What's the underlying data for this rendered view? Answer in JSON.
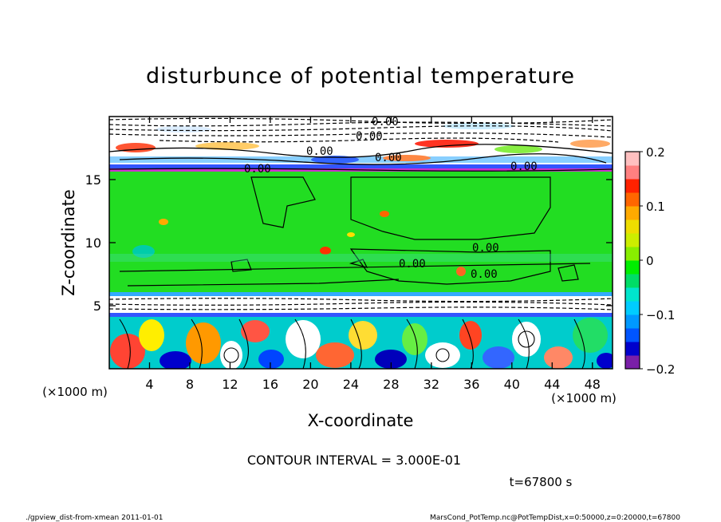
{
  "chart_data": {
    "type": "heatmap",
    "title": "disturbunce of potential temperature",
    "xlabel": "X-coordinate",
    "ylabel": "Z-coordinate",
    "x_unit": "(×1000 m)",
    "y_unit": "(×1000 m)",
    "xlim": [
      0,
      50
    ],
    "ylim": [
      0,
      20
    ],
    "x_ticks": [
      4,
      8,
      12,
      16,
      20,
      24,
      28,
      32,
      36,
      40,
      44,
      48
    ],
    "y_ticks": [
      5,
      10,
      15
    ],
    "colorbar": {
      "range": [
        -0.2,
        0.2
      ],
      "tick_values": [
        0.2,
        0.1,
        0,
        -0.1,
        -0.2
      ],
      "tick_labels": [
        "0.2",
        "0.1",
        "0",
        "−0.1",
        "−0.2"
      ],
      "colors": [
        "#7a1fa8",
        "#0000cc",
        "#0055ff",
        "#0099ff",
        "#00ccff",
        "#00e5cc",
        "#00dd66",
        "#00ee00",
        "#88ee00",
        "#ccee00",
        "#eedd00",
        "#ffaa00",
        "#ff6600",
        "#ff2200",
        "#ff8080",
        "#ffc0c0"
      ]
    },
    "contour_labels": [
      "0.00",
      "0.00",
      "0.00",
      "0.00",
      "0.00",
      "0.00",
      "0.00",
      "0.00",
      "0.00"
    ],
    "contour_interval_text": "CONTOUR INTERVAL = 3.000E-01",
    "time_text": "t=67800 s"
  },
  "footer": {
    "left": "./gpview_dist-from-xmean  2011-01-01",
    "right": "MarsCond_PotTemp.nc@PotTempDist,x=0:50000,z=0:20000,t=67800"
  }
}
